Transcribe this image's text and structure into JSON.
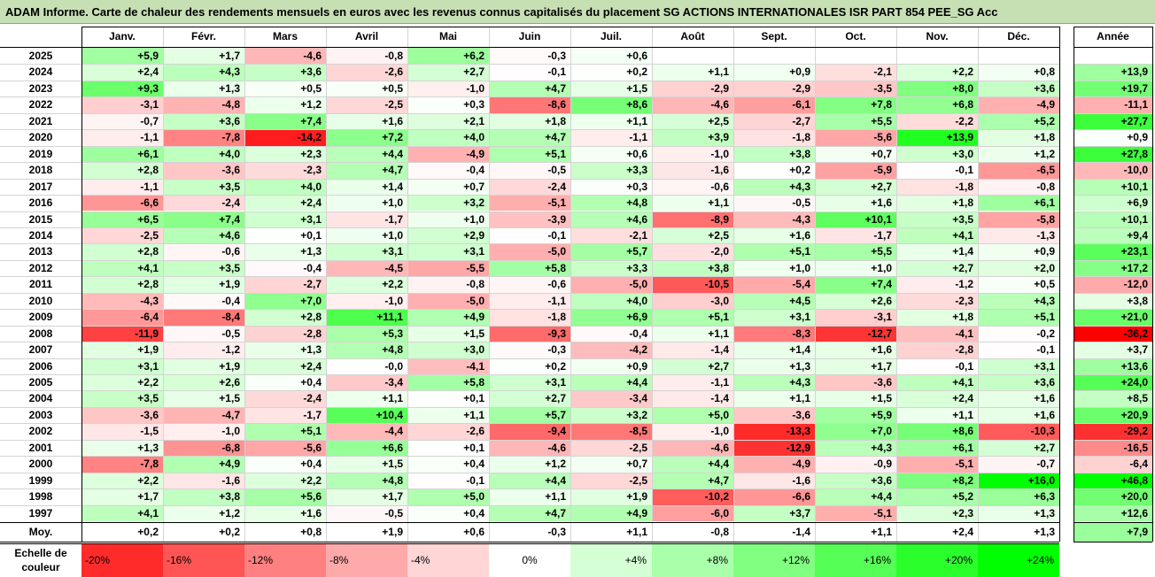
{
  "title": "ADAM Informe. Carte de chaleur des rendements mensuels en euros avec les revenus connus capitalisés du placement SG ACTIONS INTERNATIONALES ISR PART 854 PEE_SG Acc",
  "chart_data": {
    "type": "heatmap",
    "columns": [
      "Janv.",
      "Févr.",
      "Mars",
      "Avril",
      "Mai",
      "Juin",
      "Juil.",
      "Août",
      "Sept.",
      "Oct.",
      "Nov.",
      "Déc."
    ],
    "year_header": "Année",
    "avg_label": "Moy.",
    "rows": [
      {
        "year": "2025",
        "values": [
          "+5,9",
          "+1,7",
          "-4,6",
          "-0,8",
          "+6,2",
          "-0,3",
          "+0,6",
          "",
          "",
          "",
          "",
          ""
        ],
        "annual": ""
      },
      {
        "year": "2024",
        "values": [
          "+2,4",
          "+4,3",
          "+3,6",
          "-2,6",
          "+2,7",
          "-0,1",
          "+0,2",
          "+1,1",
          "+0,9",
          "-2,1",
          "+2,2",
          "+0,8"
        ],
        "annual": "+13,9"
      },
      {
        "year": "2023",
        "values": [
          "+9,3",
          "+1,3",
          "+0,5",
          "+0,5",
          "-1,0",
          "+4,7",
          "+1,5",
          "-2,9",
          "-2,9",
          "-3,5",
          "+8,0",
          "+3,6"
        ],
        "annual": "+19,7"
      },
      {
        "year": "2022",
        "values": [
          "-3,1",
          "-4,8",
          "+1,2",
          "-2,5",
          "+0,3",
          "-8,6",
          "+8,6",
          "-4,6",
          "-6,1",
          "+7,8",
          "+6,8",
          "-4,9"
        ],
        "annual": "-11,1"
      },
      {
        "year": "2021",
        "values": [
          "-0,7",
          "+3,6",
          "+7,4",
          "+1,6",
          "+2,1",
          "+1,8",
          "+1,1",
          "+2,5",
          "-2,7",
          "+5,5",
          "-2,2",
          "+5,2"
        ],
        "annual": "+27,7"
      },
      {
        "year": "2020",
        "values": [
          "-1,1",
          "-7,8",
          "-14,2",
          "+7,2",
          "+4,0",
          "+4,7",
          "-1,1",
          "+3,9",
          "-1,8",
          "-5,6",
          "+13,9",
          "+1,8"
        ],
        "annual": "+0,9"
      },
      {
        "year": "2019",
        "values": [
          "+6,1",
          "+4,0",
          "+2,3",
          "+4,4",
          "-4,9",
          "+5,1",
          "+0,6",
          "-1,0",
          "+3,8",
          "+0,7",
          "+3,0",
          "+1,2"
        ],
        "annual": "+27,8"
      },
      {
        "year": "2018",
        "values": [
          "+2,8",
          "-3,6",
          "-2,3",
          "+4,7",
          "-0,4",
          "-0,5",
          "+3,3",
          "-1,6",
          "+0,2",
          "-5,9",
          "-0,1",
          "-6,5"
        ],
        "annual": "-10,0"
      },
      {
        "year": "2017",
        "values": [
          "-1,1",
          "+3,5",
          "+4,0",
          "+1,4",
          "+0,7",
          "-2,4",
          "+0,3",
          "-0,6",
          "+4,3",
          "+2,7",
          "-1,8",
          "-0,8"
        ],
        "annual": "+10,1"
      },
      {
        "year": "2016",
        "values": [
          "-6,6",
          "-2,4",
          "+2,4",
          "+1,0",
          "+3,2",
          "-5,1",
          "+4,8",
          "+1,1",
          "-0,5",
          "+1,6",
          "+1,8",
          "+6,1"
        ],
        "annual": "+6,9"
      },
      {
        "year": "2015",
        "values": [
          "+6,5",
          "+7,4",
          "+3,1",
          "-1,7",
          "+1,0",
          "-3,9",
          "+4,6",
          "-8,9",
          "-4,3",
          "+10,1",
          "+3,5",
          "-5,8"
        ],
        "annual": "+10,1"
      },
      {
        "year": "2014",
        "values": [
          "-2,5",
          "+4,6",
          "+0,1",
          "+1,0",
          "+2,9",
          "-0,1",
          "-2,1",
          "+2,5",
          "+1,6",
          "-1,7",
          "+4,1",
          "-1,3"
        ],
        "annual": "+9,4"
      },
      {
        "year": "2013",
        "values": [
          "+2,8",
          "-0,6",
          "+1,3",
          "+3,1",
          "+3,1",
          "-5,0",
          "+5,7",
          "-2,0",
          "+5,1",
          "+5,5",
          "+1,4",
          "+0,9"
        ],
        "annual": "+23,1"
      },
      {
        "year": "2012",
        "values": [
          "+4,1",
          "+3,5",
          "-0,4",
          "-4,5",
          "-5,5",
          "+5,8",
          "+3,3",
          "+3,8",
          "+1,0",
          "+1,0",
          "+2,7",
          "+2,0"
        ],
        "annual": "+17,2"
      },
      {
        "year": "2011",
        "values": [
          "+2,8",
          "+1,9",
          "-2,7",
          "+2,2",
          "-0,8",
          "-0,6",
          "-5,0",
          "-10,5",
          "-5,4",
          "+7,4",
          "-1,2",
          "+0,5"
        ],
        "annual": "-12,0"
      },
      {
        "year": "2010",
        "values": [
          "-4,3",
          "-0,4",
          "+7,0",
          "-1,0",
          "-5,0",
          "-1,1",
          "+4,0",
          "-3,0",
          "+4,5",
          "+2,6",
          "-2,3",
          "+4,3"
        ],
        "annual": "+3,8"
      },
      {
        "year": "2009",
        "values": [
          "-6,4",
          "-8,4",
          "+2,8",
          "+11,1",
          "+4,9",
          "-1,8",
          "+6,9",
          "+5,1",
          "+3,1",
          "-3,1",
          "+1,8",
          "+5,1"
        ],
        "annual": "+21,0"
      },
      {
        "year": "2008",
        "values": [
          "-11,9",
          "-0,5",
          "-2,8",
          "+5,3",
          "+1,5",
          "-9,3",
          "-0,4",
          "+1,1",
          "-8,3",
          "-12,7",
          "-4,1",
          "-0,2"
        ],
        "annual": "-36,2"
      },
      {
        "year": "2007",
        "values": [
          "+1,9",
          "-1,2",
          "+1,3",
          "+4,8",
          "+3,0",
          "-0,3",
          "-4,2",
          "-1,4",
          "+1,4",
          "+1,6",
          "-2,8",
          "-0,1"
        ],
        "annual": "+3,7"
      },
      {
        "year": "2006",
        "values": [
          "+3,1",
          "+1,9",
          "+2,4",
          "-0,0",
          "-4,1",
          "+0,2",
          "+0,9",
          "+2,7",
          "+1,3",
          "+1,7",
          "-0,1",
          "+3,1"
        ],
        "annual": "+13,6"
      },
      {
        "year": "2005",
        "values": [
          "+2,2",
          "+2,6",
          "+0,4",
          "-3,4",
          "+5,8",
          "+3,1",
          "+4,4",
          "-1,1",
          "+4,3",
          "-3,6",
          "+4,1",
          "+3,6"
        ],
        "annual": "+24,0"
      },
      {
        "year": "2004",
        "values": [
          "+3,5",
          "+1,5",
          "-2,4",
          "+1,1",
          "+0,1",
          "+2,7",
          "-3,4",
          "-1,4",
          "+1,1",
          "+1,5",
          "+2,4",
          "+1,6"
        ],
        "annual": "+8,5"
      },
      {
        "year": "2003",
        "values": [
          "-3,6",
          "-4,7",
          "-1,7",
          "+10,4",
          "+1,1",
          "+5,7",
          "+3,2",
          "+5,0",
          "-3,6",
          "+5,9",
          "+1,1",
          "+1,6"
        ],
        "annual": "+20,9"
      },
      {
        "year": "2002",
        "values": [
          "-1,5",
          "-1,0",
          "+5,1",
          "-4,4",
          "-2,6",
          "-9,4",
          "-8,5",
          "-1,0",
          "-13,3",
          "+7,0",
          "+8,6",
          "-10,3"
        ],
        "annual": "-29,2"
      },
      {
        "year": "2001",
        "values": [
          "+1,3",
          "-6,8",
          "-5,6",
          "+6,6",
          "+0,1",
          "-4,6",
          "-2,5",
          "-4,6",
          "-12,9",
          "+4,3",
          "+6,1",
          "+2,7"
        ],
        "annual": "-16,5"
      },
      {
        "year": "2000",
        "values": [
          "-7,8",
          "+4,9",
          "+0,4",
          "+1,5",
          "+0,4",
          "+1,2",
          "+0,7",
          "+4,4",
          "-4,9",
          "-0,9",
          "-5,1",
          "-0,7"
        ],
        "annual": "-6,4"
      },
      {
        "year": "1999",
        "values": [
          "+2,2",
          "-1,6",
          "+2,2",
          "+4,8",
          "-0,1",
          "+4,4",
          "-2,5",
          "+4,7",
          "-1,6",
          "+3,6",
          "+8,2",
          "+16,0"
        ],
        "annual": "+46,8"
      },
      {
        "year": "1998",
        "values": [
          "+1,7",
          "+3,8",
          "+5,6",
          "+1,7",
          "+5,0",
          "+1,1",
          "+1,9",
          "-10,2",
          "-6,6",
          "+4,4",
          "+5,2",
          "+6,3"
        ],
        "annual": "+20,0"
      },
      {
        "year": "1997",
        "values": [
          "+4,1",
          "+1,2",
          "+1,6",
          "-0,5",
          "+0,4",
          "+4,7",
          "+4,9",
          "-6,0",
          "+3,7",
          "-5,1",
          "+2,3",
          "+1,3"
        ],
        "annual": "+12,6"
      }
    ],
    "averages": {
      "values": [
        "+0,2",
        "+0,2",
        "+0,8",
        "+1,9",
        "+0,6",
        "-0,3",
        "+1,1",
        "-0,8",
        "-1,4",
        "+1,1",
        "+2,4",
        "+1,3"
      ],
      "annual": "+7,9"
    },
    "scale": {
      "label_line1": "Echelle de",
      "label_line2": "couleur",
      "steps": [
        "-20%",
        "-16%",
        "-12%",
        "-8%",
        "-4%",
        "0%",
        "+4%",
        "+8%",
        "+12%",
        "+16%",
        "+20%",
        "+24%"
      ]
    },
    "colors": {
      "title_bg": "#c6e0b4",
      "neg_max": "#ff0000",
      "pos_max": "#00ff00",
      "neutral": "#ffffff"
    }
  }
}
